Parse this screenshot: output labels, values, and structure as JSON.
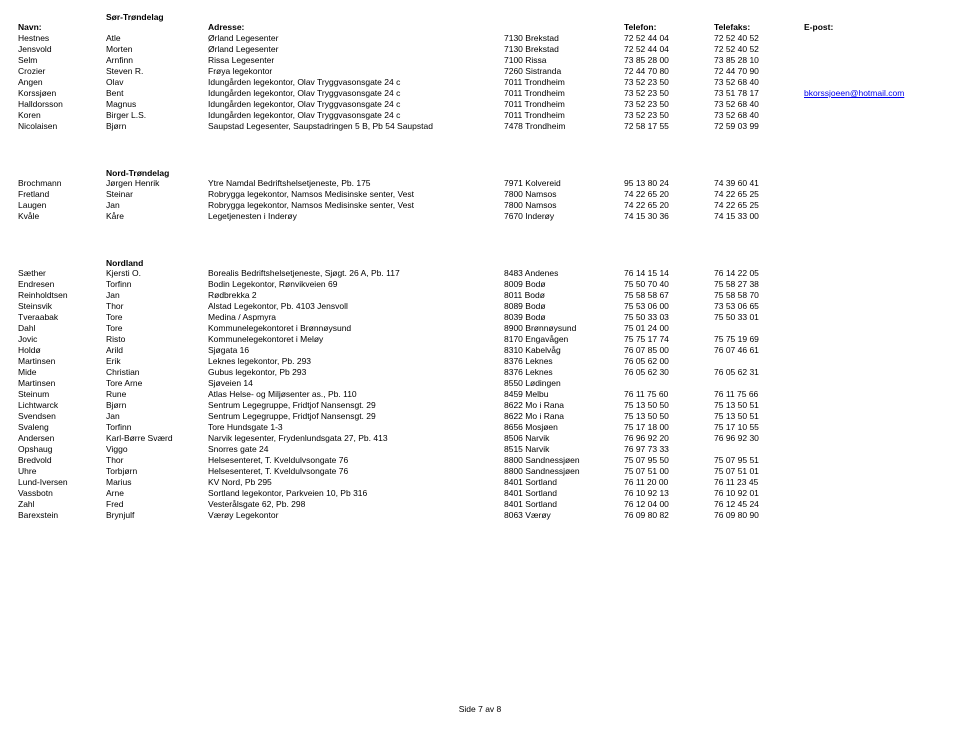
{
  "headers": {
    "lastname": "Navn:",
    "firstname": "",
    "address": "Adresse:",
    "city": "",
    "phone": "Telefon:",
    "fax": "Telefaks:",
    "email": "E-post:"
  },
  "footer": "Side 7 av 8",
  "colors": {
    "link": "#0000ee",
    "text": "#000000",
    "background": "#ffffff"
  },
  "font": {
    "family": "Arial",
    "size_pt": 6.5,
    "header_weight": "bold"
  },
  "sections": [
    {
      "title": "Sør-Trøndelag",
      "showHeader": true,
      "rows": [
        {
          "last": "Hestnes",
          "first": "Atle",
          "addr": "Ørland Legesenter",
          "city": "7130 Brekstad",
          "phone": "72 52 44 04",
          "fax": "72 52 40 52",
          "email": ""
        },
        {
          "last": "Jensvold",
          "first": "Morten",
          "addr": "Ørland Legesenter",
          "city": "7130 Brekstad",
          "phone": "72 52 44 04",
          "fax": "72 52 40 52",
          "email": ""
        },
        {
          "last": "Selm",
          "first": "Arnfinn",
          "addr": "Rissa Legesenter",
          "city": "7100 Rissa",
          "phone": "73 85 28 00",
          "fax": "73 85 28 10",
          "email": ""
        },
        {
          "last": "Crozier",
          "first": "Steven R.",
          "addr": "Frøya legekontor",
          "city": "7260 Sistranda",
          "phone": "72 44 70 80",
          "fax": "72 44 70 90",
          "email": ""
        },
        {
          "last": "Angen",
          "first": "Olav",
          "addr": "Idungården legekontor, Olav Tryggvasonsgate 24 c",
          "city": "7011 Trondheim",
          "phone": "73 52 23 50",
          "fax": "73 52 68 40",
          "email": ""
        },
        {
          "last": "Korssjøen",
          "first": "Bent",
          "addr": "Idungården legekontor, Olav Tryggvasonsgate 24 c",
          "city": "7011 Trondheim",
          "phone": "73 52 23 50",
          "fax": "73 51 78 17",
          "email": "bkorssjoeen@hotmail.com"
        },
        {
          "last": "Halldorsson",
          "first": "Magnus",
          "addr": "Idungården legekontor, Olav Tryggvasonsgate 24 c",
          "city": "7011 Trondheim",
          "phone": "73 52 23 50",
          "fax": "73 52 68 40",
          "email": ""
        },
        {
          "last": "Koren",
          "first": "Birger L.S.",
          "addr": "Idungården legekontor, Olav Tryggvasonsgate 24 c",
          "city": "7011 Trondheim",
          "phone": "73 52 23 50",
          "fax": "73 52 68 40",
          "email": ""
        },
        {
          "last": "Nicolaisen",
          "first": "Bjørn",
          "addr": "Saupstad Legesenter, Saupstadringen 5 B, Pb 54 Saupstad",
          "city": "7478 Trondheim",
          "phone": "72 58 17 55",
          "fax": "72 59 03 99",
          "email": ""
        }
      ]
    },
    {
      "title": "Nord-Trøndelag",
      "showHeader": false,
      "rows": [
        {
          "last": "Brochmann",
          "first": "Jørgen Henrik",
          "addr": "Ytre Namdal Bedriftshelsetjeneste, Pb. 175",
          "city": "7971 Kolvereid",
          "phone": "95 13 80 24",
          "fax": "74 39 60 41",
          "email": ""
        },
        {
          "last": "Fretland",
          "first": "Steinar",
          "addr": "Robrygga legekontor, Namsos Medisinske senter, Vest",
          "city": "7800 Namsos",
          "phone": "74 22 65 20",
          "fax": "74 22 65 25",
          "email": ""
        },
        {
          "last": "Laugen",
          "first": "Jan",
          "addr": "Robrygga legekontor, Namsos Medisinske senter, Vest",
          "city": "7800 Namsos",
          "phone": "74 22 65 20",
          "fax": "74 22 65 25",
          "email": ""
        },
        {
          "last": "Kvåle",
          "first": "Kåre",
          "addr": "Legetjenesten i Inderøy",
          "city": "7670 Inderøy",
          "phone": "74 15 30 36",
          "fax": "74 15 33 00",
          "email": ""
        }
      ]
    },
    {
      "title": "Nordland",
      "showHeader": false,
      "rows": [
        {
          "last": "Sæther",
          "first": "Kjersti O.",
          "addr": "Borealis Bedriftshelsetjeneste, Sjøgt. 26 A, Pb. 117",
          "city": "8483 Andenes",
          "phone": "76 14 15 14",
          "fax": "76 14 22 05",
          "email": ""
        },
        {
          "last": "Endresen",
          "first": "Torfinn",
          "addr": "Bodin Legekontor, Rønvikveien 69",
          "city": "8009 Bodø",
          "phone": "75 50 70 40",
          "fax": "75 58 27 38",
          "email": ""
        },
        {
          "last": "Reinholdtsen",
          "first": "Jan",
          "addr": "Rødbrekka 2",
          "city": "8011 Bodø",
          "phone": "75 58 58 67",
          "fax": "75 58 58 70",
          "email": ""
        },
        {
          "last": "Steinsvik",
          "first": "Thor",
          "addr": "Alstad Legekontor, Pb. 4103 Jensvoll",
          "city": "8089 Bodø",
          "phone": "75 53 06 00",
          "fax": "73 53 06 65",
          "email": ""
        },
        {
          "last": "Tveraabak",
          "first": "Tore",
          "addr": "Medina / Aspmyra",
          "city": "8039 Bodø",
          "phone": "75 50 33 03",
          "fax": "75 50 33 01",
          "email": ""
        },
        {
          "last": "Dahl",
          "first": "Tore",
          "addr": "Kommunelegekontoret i Brønnøysund",
          "city": "8900 Brønnøysund",
          "phone": "75 01 24 00",
          "fax": "",
          "email": ""
        },
        {
          "last": "Jovic",
          "first": "Risto",
          "addr": "Kommunelegekontoret i Meløy",
          "city": "8170 Engavågen",
          "phone": "75 75 17 74",
          "fax": "75 75 19 69",
          "email": ""
        },
        {
          "last": "Holdø",
          "first": "Arild",
          "addr": "Sjøgata 16",
          "city": "8310 Kabelvåg",
          "phone": "76 07 85 00",
          "fax": "76 07 46 61",
          "email": ""
        },
        {
          "last": "Martinsen",
          "first": "Erik",
          "addr": "Leknes legekontor, Pb. 293",
          "city": "8376 Leknes",
          "phone": "76 05 62 00",
          "fax": "",
          "email": ""
        },
        {
          "last": "Mide",
          "first": "Christian",
          "addr": "Gubus legekontor, Pb 293",
          "city": "8376 Leknes",
          "phone": "76 05 62 30",
          "fax": "76 05 62 31",
          "email": ""
        },
        {
          "last": "Martinsen",
          "first": "Tore Arne",
          "addr": "Sjøveien 14",
          "city": "8550 Lødingen",
          "phone": "",
          "fax": "",
          "email": ""
        },
        {
          "last": "Steinum",
          "first": "Rune",
          "addr": "Atlas Helse- og Miljøsenter as., Pb. 110",
          "city": "8459 Melbu",
          "phone": "76 11 75 60",
          "fax": "76 11 75 66",
          "email": ""
        },
        {
          "last": "Lichtwarck",
          "first": "Bjørn",
          "addr": "Sentrum Legegruppe, Fridtjof Nansensgt. 29",
          "city": "8622 Mo i Rana",
          "phone": "75 13 50 50",
          "fax": "75 13 50 51",
          "email": ""
        },
        {
          "last": "Svendsen",
          "first": "Jan",
          "addr": "Sentrum Legegruppe, Fridtjof Nansensgt. 29",
          "city": "8622 Mo i Rana",
          "phone": "75 13 50 50",
          "fax": "75 13 50 51",
          "email": ""
        },
        {
          "last": "Svaleng",
          "first": "Torfinn",
          "addr": "Tore Hundsgate 1-3",
          "city": "8656 Mosjøen",
          "phone": "75 17 18 00",
          "fax": "75 17 10 55",
          "email": ""
        },
        {
          "last": "Andersen",
          "first": "Karl-Børre Sværd",
          "addr": "Narvik legesenter, Frydenlundsgata 27, Pb. 413",
          "city": "8506 Narvik",
          "phone": "76 96 92 20",
          "fax": "76 96 92 30",
          "email": ""
        },
        {
          "last": "Opshaug",
          "first": "Viggo",
          "addr": "Snorres gate 24",
          "city": "8515 Narvik",
          "phone": "76 97 73 33",
          "fax": "",
          "email": ""
        },
        {
          "last": "Bredvold",
          "first": "Thor",
          "addr": "Helsesenteret, T. Kveldulvsongate 76",
          "city": "8800 Sandnessjøen",
          "phone": "75 07 95 50",
          "fax": "75 07 95 51",
          "email": ""
        },
        {
          "last": "Uhre",
          "first": "Torbjørn",
          "addr": "Helsesenteret, T. Kveldulvsongate 76",
          "city": "8800 Sandnessjøen",
          "phone": "75 07 51 00",
          "fax": "75 07 51 01",
          "email": ""
        },
        {
          "last": "Lund-Iversen",
          "first": "Marius",
          "addr": "KV Nord, Pb 295",
          "city": "8401 Sortland",
          "phone": "76 11 20 00",
          "fax": "76 11 23 45",
          "email": ""
        },
        {
          "last": "Vassbotn",
          "first": "Arne",
          "addr": "Sortland legekontor, Parkveien 10, Pb 316",
          "city": "8401 Sortland",
          "phone": "76 10 92 13",
          "fax": "76 10 92 01",
          "email": ""
        },
        {
          "last": "Zahl",
          "first": "Fred",
          "addr": "Vesterålsgate 62, Pb. 298",
          "city": "8401 Sortland",
          "phone": "76 12 04 00",
          "fax": "76 12 45 24",
          "email": ""
        },
        {
          "last": "Barexstein",
          "first": "Brynjulf",
          "addr": "Værøy Legekontor",
          "city": "8063 Værøy",
          "phone": "76 09 80 82",
          "fax": "76 09 80 90",
          "email": ""
        }
      ]
    }
  ]
}
